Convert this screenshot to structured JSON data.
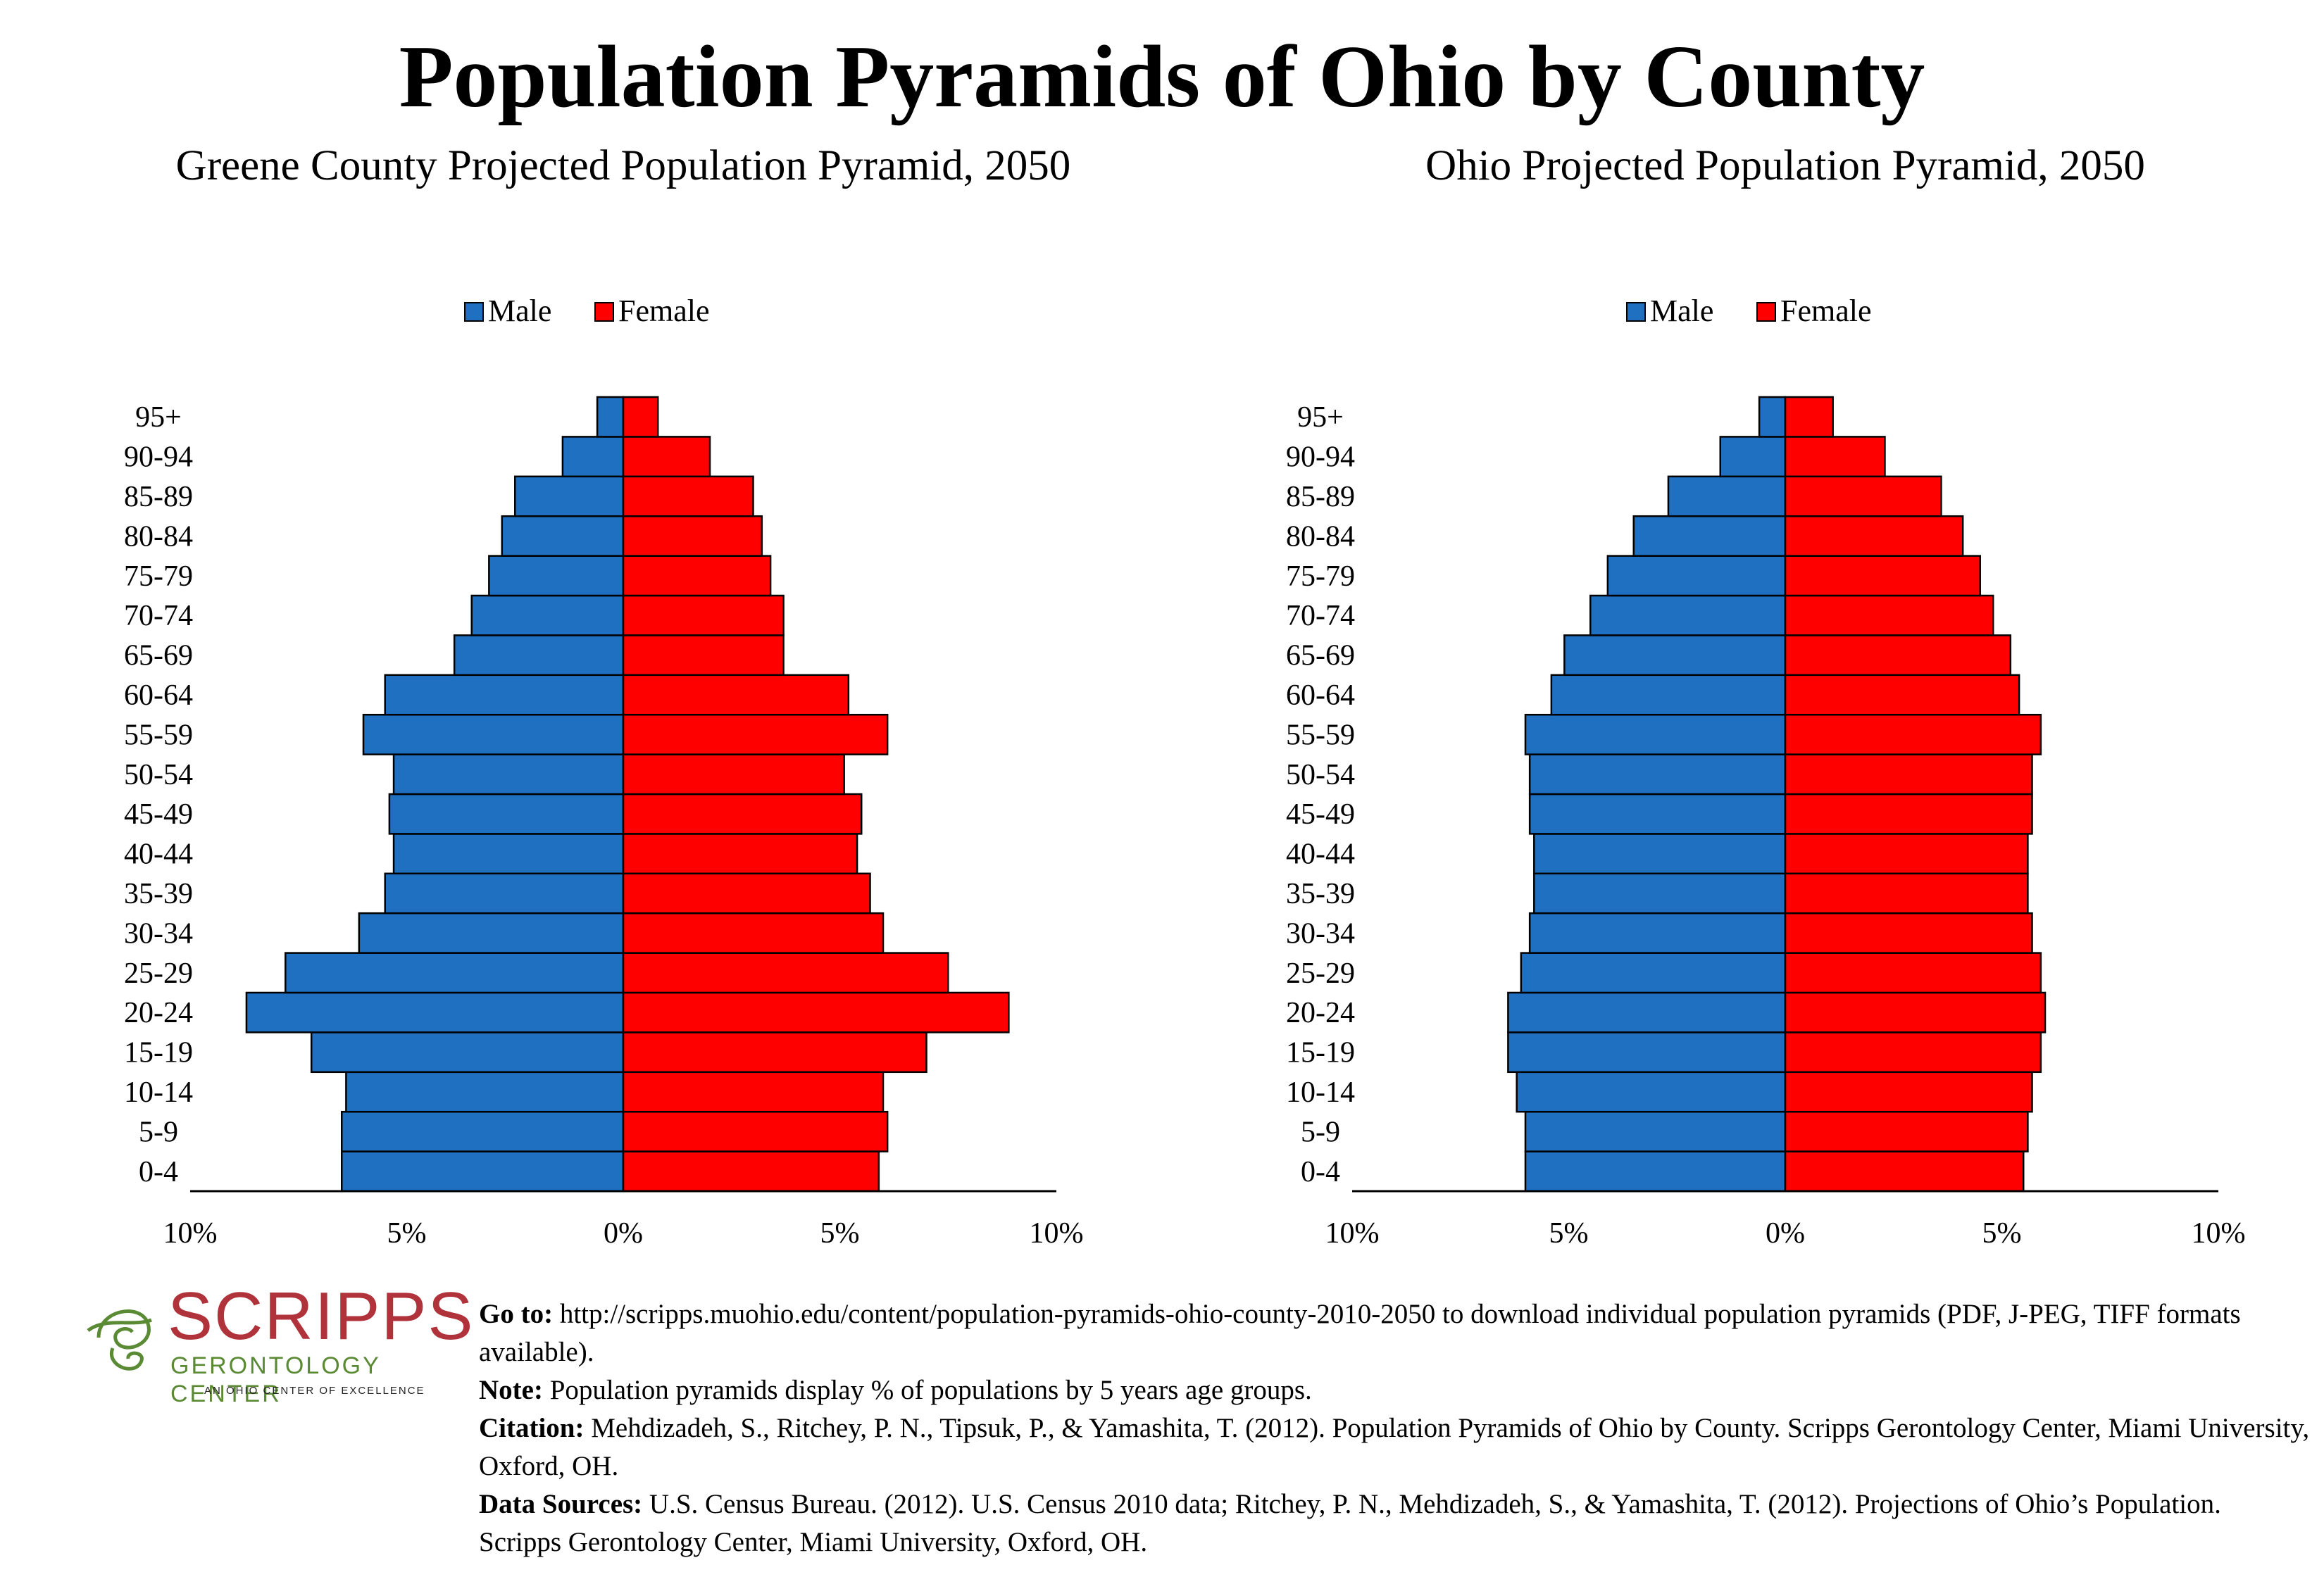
{
  "title": "Population Pyramids of Ohio by County",
  "legend": {
    "male": "Male",
    "female": "Female"
  },
  "colors": {
    "male": "#1f70c1",
    "female": "#ff0000",
    "outline": "#000000"
  },
  "x_tick_labels": [
    "10%",
    "5%",
    "0%",
    "5%",
    "10%"
  ],
  "chart_data": [
    {
      "type": "bar",
      "orientation": "horizontal-pyramid",
      "title": "Greene County Projected Population Pyramid, 2050",
      "categories": [
        "0-4",
        "5-9",
        "10-14",
        "15-19",
        "20-24",
        "25-29",
        "30-34",
        "35-39",
        "40-44",
        "45-49",
        "50-54",
        "55-59",
        "60-64",
        "65-69",
        "70-74",
        "75-79",
        "80-84",
        "85-89",
        "90-94",
        "95+"
      ],
      "series": [
        {
          "name": "Male",
          "values": [
            6.5,
            6.5,
            6.4,
            7.2,
            8.7,
            7.8,
            6.1,
            5.5,
            5.3,
            5.4,
            5.3,
            6.0,
            5.5,
            3.9,
            3.5,
            3.1,
            2.8,
            2.5,
            1.4,
            0.6
          ]
        },
        {
          "name": "Female",
          "values": [
            5.9,
            6.1,
            6.0,
            7.0,
            8.9,
            7.5,
            6.0,
            5.7,
            5.4,
            5.5,
            5.1,
            6.1,
            5.2,
            3.7,
            3.7,
            3.4,
            3.2,
            3.0,
            2.0,
            0.8
          ]
        }
      ],
      "xlim": [
        -10,
        10
      ],
      "grid": false,
      "legend_position": "top"
    },
    {
      "type": "bar",
      "orientation": "horizontal-pyramid",
      "title": "Ohio Projected Population Pyramid, 2050",
      "categories": [
        "0-4",
        "5-9",
        "10-14",
        "15-19",
        "20-24",
        "25-29",
        "30-34",
        "35-39",
        "40-44",
        "45-49",
        "50-54",
        "55-59",
        "60-64",
        "65-69",
        "70-74",
        "75-79",
        "80-84",
        "85-89",
        "90-94",
        "95+"
      ],
      "series": [
        {
          "name": "Male",
          "values": [
            6.0,
            6.0,
            6.2,
            6.4,
            6.4,
            6.1,
            5.9,
            5.8,
            5.8,
            5.9,
            5.9,
            6.0,
            5.4,
            5.1,
            4.5,
            4.1,
            3.5,
            2.7,
            1.5,
            0.6
          ]
        },
        {
          "name": "Female",
          "values": [
            5.5,
            5.6,
            5.7,
            5.9,
            6.0,
            5.9,
            5.7,
            5.6,
            5.6,
            5.7,
            5.7,
            5.9,
            5.4,
            5.2,
            4.8,
            4.5,
            4.1,
            3.6,
            2.3,
            1.1
          ]
        }
      ],
      "xlim": [
        -10,
        10
      ],
      "grid": false,
      "legend_position": "top"
    }
  ],
  "logo": {
    "word": "SCRIPPS",
    "subtitle": "GERONTOLOGY CENTER",
    "tagline": "AN OHIO CENTER OF EXCELLENCE"
  },
  "footer": {
    "goto_label": "Go to:",
    "goto_text": "http://scripps.muohio.edu/content/population-pyramids-ohio-county-2010-2050 to download individual population pyramids (PDF, J-PEG, TIFF formats available).",
    "note_label": "Note:",
    "note_text": "Population pyramids display % of populations by 5 years age groups.",
    "citation_label": "Citation:",
    "citation_text": "Mehdizadeh, S., Ritchey, P. N., Tipsuk, P., & Yamashita, T. (2012). Population Pyramids of Ohio by County. Scripps Gerontology Center, Miami University, Oxford, OH.",
    "sources_label": "Data Sources:",
    "sources_text": "U.S. Census Bureau. (2012). U.S. Census 2010 data; Ritchey, P. N., Mehdizadeh, S., & Yamashita, T. (2012). Projections of Ohio’s Population. Scripps Gerontology Center, Miami University, Oxford, OH."
  }
}
